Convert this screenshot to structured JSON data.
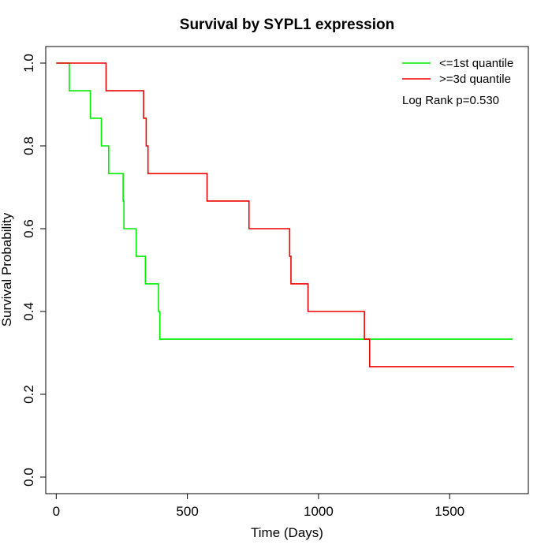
{
  "chart_data": {
    "type": "line",
    "title": "Survival by SYPL1 expression",
    "xlabel": "Time (Days)",
    "ylabel": "Survival Probability",
    "xlim": [
      -40,
      1800
    ],
    "ylim": [
      -0.04,
      1.04
    ],
    "xticks": [
      0,
      500,
      1000,
      1500
    ],
    "yticks": [
      0.0,
      0.2,
      0.4,
      0.6,
      0.8,
      1.0
    ],
    "xtick_labels": [
      "0",
      "500",
      "1000",
      "1500"
    ],
    "ytick_labels": [
      "0.0",
      "0.2",
      "0.4",
      "0.6",
      "0.8",
      "1.0"
    ],
    "legend_position": "top-right",
    "annotation": "Log Rank p=0.530",
    "series": [
      {
        "name": "<=1st quantile",
        "color": "#00ee00",
        "step": true,
        "points": [
          [
            0,
            1.0
          ],
          [
            50,
            0.9333
          ],
          [
            130,
            0.8667
          ],
          [
            172,
            0.8
          ],
          [
            200,
            0.7333
          ],
          [
            255,
            0.6667
          ],
          [
            258,
            0.6
          ],
          [
            305,
            0.5333
          ],
          [
            340,
            0.4667
          ],
          [
            390,
            0.4
          ],
          [
            395,
            0.3333
          ],
          [
            1740,
            0.3333
          ]
        ]
      },
      {
        "name": ">=3d quantile",
        "color": "#ee0000",
        "step": true,
        "points": [
          [
            0,
            1.0
          ],
          [
            190,
            0.9333
          ],
          [
            333,
            0.8667
          ],
          [
            343,
            0.8
          ],
          [
            350,
            0.7333
          ],
          [
            575,
            0.6667
          ],
          [
            735,
            0.6
          ],
          [
            890,
            0.5333
          ],
          [
            895,
            0.4667
          ],
          [
            960,
            0.4
          ],
          [
            1175,
            0.3333
          ],
          [
            1195,
            0.2667
          ],
          [
            1745,
            0.2667
          ]
        ]
      }
    ]
  }
}
